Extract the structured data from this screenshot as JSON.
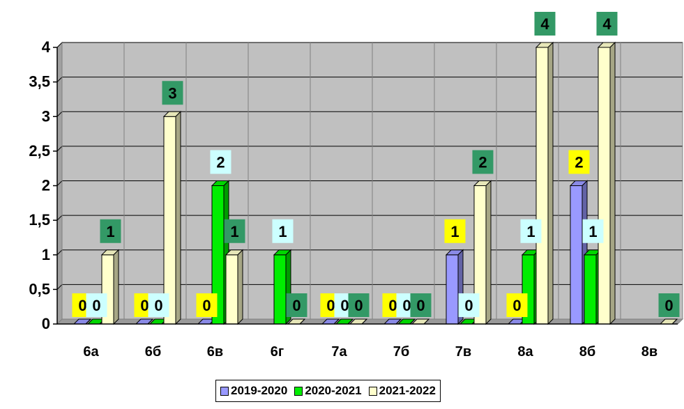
{
  "chart_data": {
    "type": "bar",
    "categories": [
      "6а",
      "6б",
      "6в",
      "6г",
      "7а",
      "7б",
      "7в",
      "8а",
      "8б",
      "8в"
    ],
    "series": [
      {
        "name": "2019-2020",
        "color": "#9999ff",
        "values": [
          0,
          0,
          0,
          null,
          0,
          0,
          1,
          0,
          2,
          null
        ],
        "label_bg": "#ffff00"
      },
      {
        "name": "2020-2021",
        "color": "#00ee00",
        "values": [
          0,
          0,
          2,
          1,
          0,
          0,
          0,
          1,
          1,
          null
        ],
        "label_bg": "#ccffff"
      },
      {
        "name": "2021-2022",
        "color": "#ffffcc",
        "values": [
          1,
          3,
          1,
          0,
          0,
          0,
          2,
          4,
          4,
          0
        ],
        "label_bg": "#339966"
      }
    ],
    "y_ticks": [
      "0",
      "0,5",
      "1",
      "1,5",
      "2",
      "2,5",
      "3",
      "3,5",
      "4"
    ],
    "ylim": [
      0,
      4
    ],
    "grid": true,
    "legend_position": "bottom-center",
    "title": "",
    "xlabel": "",
    "ylabel": ""
  }
}
